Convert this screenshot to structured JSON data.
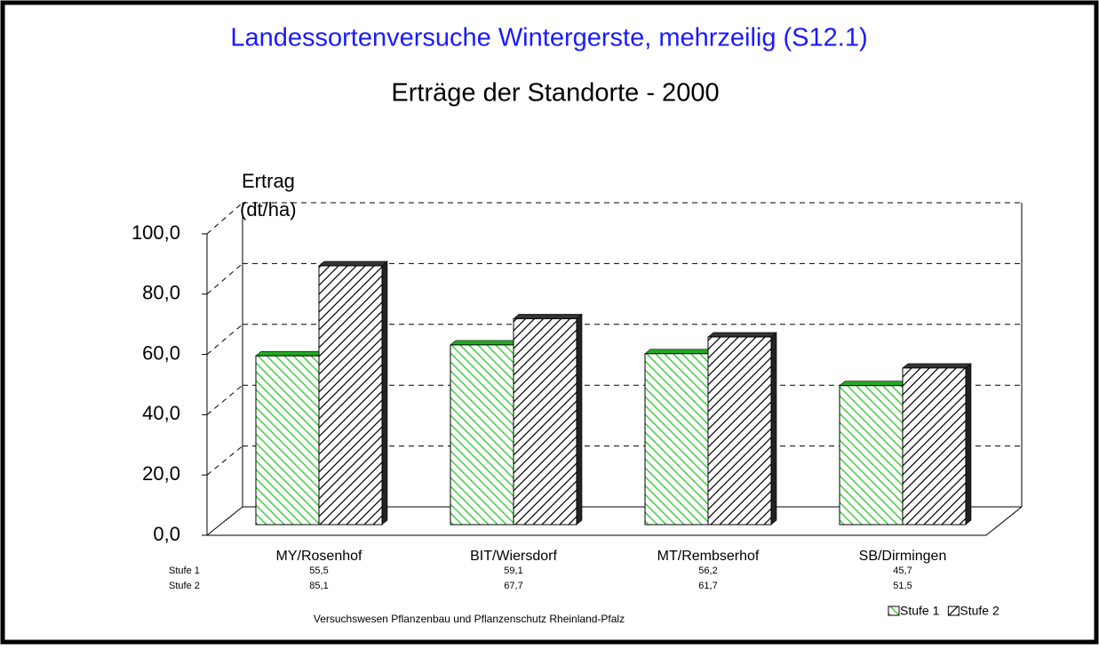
{
  "chart_data": {
    "type": "bar3d",
    "title": "Landessortenversuche Wintergerste, mehrzeilig (S12.1)",
    "subtitle": "Erträge der Standorte  - 2000",
    "y_label": [
      "Ertrag",
      "(dt/ha)"
    ],
    "categories": [
      "MY/Rosenhof",
      "BIT/Wiersdorf",
      "MT/Rembserhof",
      "SB/Dirmingen"
    ],
    "series": [
      {
        "name": "Stufe 1",
        "color": "#33cc33",
        "values": [
          55.5,
          59.1,
          56.2,
          45.7
        ],
        "value_labels": [
          "55,5",
          "59,1",
          "56,2",
          "45,7"
        ]
      },
      {
        "name": "Stufe 2",
        "color": "#333333",
        "values": [
          85.1,
          67.7,
          61.7,
          51.5
        ],
        "value_labels": [
          "85,1",
          "67,7",
          "61,7",
          "51,5"
        ]
      }
    ],
    "ylim": [
      0,
      100
    ],
    "yticks": [
      {
        "value": 0,
        "label": "0,0"
      },
      {
        "value": 20,
        "label": "20,0"
      },
      {
        "value": 40,
        "label": "40,0"
      },
      {
        "value": 60,
        "label": "60,0"
      },
      {
        "value": 80,
        "label": "80,0"
      },
      {
        "value": 100,
        "label": "100,0"
      }
    ],
    "grid": true,
    "legend": "bottom-right",
    "footer": "Versuchswesen Pflanzenbau und Pflanzenschutz Rheinland-Pfalz"
  }
}
